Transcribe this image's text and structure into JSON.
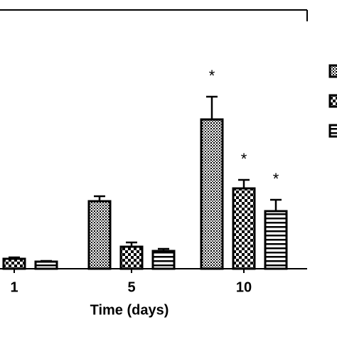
{
  "chart_data": {
    "type": "bar",
    "x_label": "Time (days)",
    "categories": [
      "1",
      "5",
      "10"
    ],
    "series": [
      {
        "pattern": "dots",
        "values": [
          null,
          95,
          210
        ],
        "errors": [
          null,
          7,
          32
        ]
      },
      {
        "pattern": "checker",
        "values": [
          14,
          31,
          113
        ],
        "errors": [
          2,
          6,
          12
        ]
      },
      {
        "pattern": "stripes",
        "values": [
          10,
          25,
          81
        ],
        "errors": [
          1,
          3,
          16
        ]
      }
    ],
    "annotations": [
      "*",
      "*",
      "*"
    ],
    "color": "#000000",
    "ylim": [
      0,
      362
    ]
  }
}
